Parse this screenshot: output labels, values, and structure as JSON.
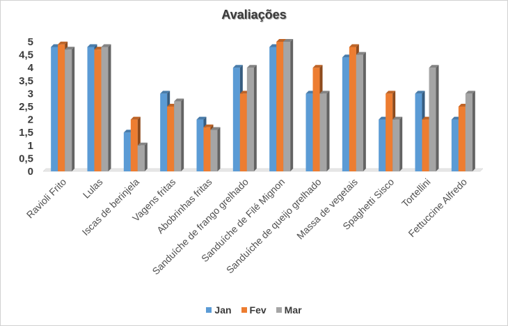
{
  "chart_data": {
    "type": "bar",
    "title": "Avaliações",
    "xlabel": "",
    "ylabel": "",
    "ylim": [
      0,
      5
    ],
    "yticks": [
      "0",
      "0,5",
      "1",
      "1,5",
      "2",
      "2,5",
      "3",
      "3,5",
      "4",
      "4,5",
      "5"
    ],
    "categories": [
      "Ravioli Frito",
      "Lulas",
      "Iscas de berinjela",
      "Vagens fritas",
      "Abobrinhas fritas",
      "Sanduíche de frango grelhado",
      "Sanduíche de Filé Mignon",
      "Sanduíche de queijo grelhado",
      "Massa de vegetais",
      "Spaghetti Sisco",
      "Tortellini",
      "Fettuccine Alfredo"
    ],
    "series": [
      {
        "name": "Jan",
        "color": "#5b9bd5",
        "values": [
          4.8,
          4.8,
          1.5,
          3.0,
          2.0,
          4.0,
          4.8,
          3.0,
          4.4,
          2.0,
          3.0,
          2.0
        ]
      },
      {
        "name": "Fev",
        "color": "#ed7d31",
        "values": [
          4.9,
          4.7,
          2.0,
          2.5,
          1.7,
          3.0,
          5.0,
          4.0,
          4.8,
          3.0,
          2.0,
          2.5
        ]
      },
      {
        "name": "Mar",
        "color": "#a5a5a5",
        "values": [
          4.7,
          4.8,
          1.0,
          2.7,
          1.6,
          4.0,
          5.0,
          3.0,
          4.5,
          2.0,
          4.0,
          3.0
        ]
      }
    ],
    "grid": false,
    "legend_position": "bottom"
  }
}
